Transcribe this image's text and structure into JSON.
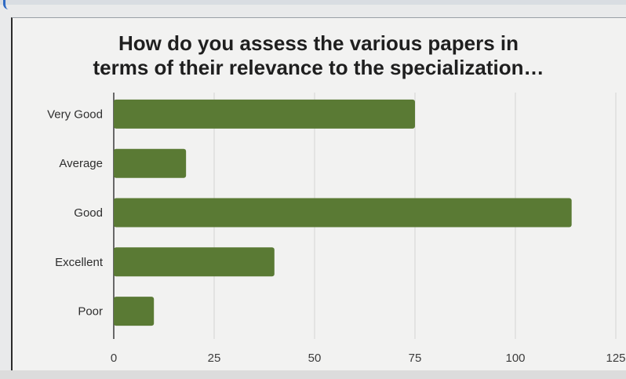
{
  "chart_data": {
    "type": "bar",
    "orientation": "horizontal",
    "title_lines": [
      "How do you assess the various papers in",
      "terms of their relevance to the specialization…"
    ],
    "categories": [
      "Very Good",
      "Average",
      "Good",
      "Excellent",
      "Poor"
    ],
    "values": [
      75,
      18,
      114,
      40,
      10
    ],
    "x_ticks": [
      0,
      25,
      50,
      75,
      100,
      125
    ],
    "xlim": [
      0,
      125
    ],
    "xlabel": "",
    "ylabel": "",
    "grid": true,
    "bar_color": "#5a7a34"
  }
}
